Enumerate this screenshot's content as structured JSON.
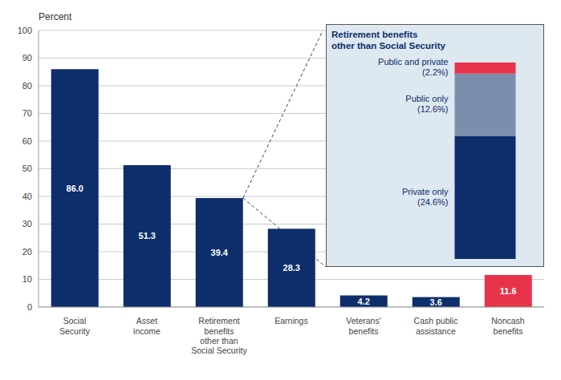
{
  "chart_data": [
    {
      "type": "bar",
      "ylabel": "Percent",
      "categories": [
        "Social\nSecurity",
        "Asset\nincome",
        "Retirement\nbenefits\nother than\nSocial Security",
        "Earnings",
        "Veterans'\nbenefits",
        "Cash public\nassistance",
        "Noncash\nbenefits"
      ],
      "values": [
        86.0,
        51.3,
        39.4,
        28.3,
        4.2,
        3.6,
        11.6
      ],
      "value_labels": [
        "86.0",
        "51.3",
        "39.4",
        "28.3",
        "4.2",
        "3.6",
        "11.6"
      ],
      "colors": [
        "#0d2d6b",
        "#0d2d6b",
        "#0d2d6b",
        "#0d2d6b",
        "#0d2d6b",
        "#0d2d6b",
        "#e8344a"
      ],
      "ylim": [
        0,
        100
      ],
      "yticks": [
        0,
        10,
        20,
        30,
        40,
        50,
        60,
        70,
        80,
        90,
        100
      ],
      "grid": true,
      "data_labels": true
    },
    {
      "type": "bar",
      "title": "Retirement benefits\nother than Social Security",
      "stacked": true,
      "categories": [
        null
      ],
      "series": [
        {
          "name": "Public and private\n(2.2%)",
          "color": "#e8344a",
          "values": [
            2.2
          ]
        },
        {
          "name": "Public only\n(12.6%)",
          "color": "#7b8fad",
          "values": [
            12.6
          ]
        },
        {
          "name": "Private only\n(24.6%)",
          "color": "#0d2d6b",
          "values": [
            24.6
          ]
        }
      ],
      "ylim": [
        0,
        39.4
      ],
      "tick_labels": false
    }
  ]
}
